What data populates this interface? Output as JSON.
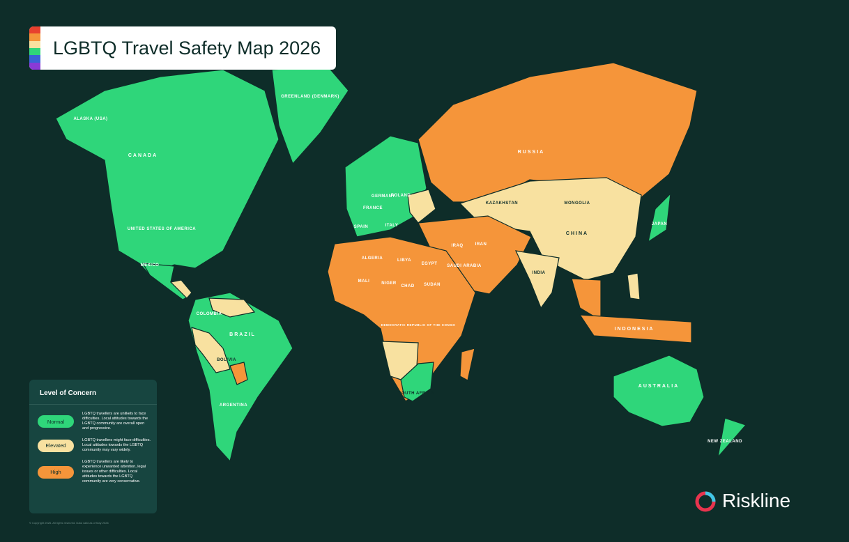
{
  "header": {
    "title": "LGBTQ Travel Safety Map 2026"
  },
  "legend": {
    "title": "Level of Concern",
    "items": [
      {
        "label": "Normal",
        "color": "#2fd67a",
        "description": "LGBTQ travellers are unlikely to face difficulties. Local attitudes towards the LGBTQ community are overall open and progressive."
      },
      {
        "label": "Elevated",
        "color": "#f8e1a0",
        "description": "LGBTQ travellers might face difficulties. Local attitudes towards the LGBTQ community may vary widely."
      },
      {
        "label": "High",
        "color": "#f5953a",
        "description": "LGBTQ travellers are likely to experience unwanted attention, legal issues or other difficulties. Local attitudes towards the LGBTQ community are very conservative."
      }
    ]
  },
  "map": {
    "labels": [
      "ALASKA (USA)",
      "CANADA",
      "UNITED STATES OF AMERICA",
      "MEXICO",
      "GREENLAND (DENMARK)",
      "COLOMBIA",
      "BRAZIL",
      "BOLIVIA",
      "ARGENTINA",
      "SPAIN",
      "FRANCE",
      "GERMANY",
      "POLAND",
      "ITALY",
      "RUSSIA",
      "KAZAKHSTAN",
      "MONGOLIA",
      "CHINA",
      "JAPAN",
      "IRAN",
      "IRAQ",
      "SAUDI ARABIA",
      "EGYPT",
      "LIBYA",
      "ALGERIA",
      "MALI",
      "NIGER",
      "CHAD",
      "SUDAN",
      "DEMOCRATIC REPUBLIC OF THE CONGO",
      "SOUTH AFRICA",
      "INDIA",
      "INDONESIA",
      "AUSTRALIA",
      "NEW ZEALAND"
    ]
  },
  "brand": "Riskline",
  "footer": "© Copyright 2026. All rights reserved. Data valid as of May 2026"
}
